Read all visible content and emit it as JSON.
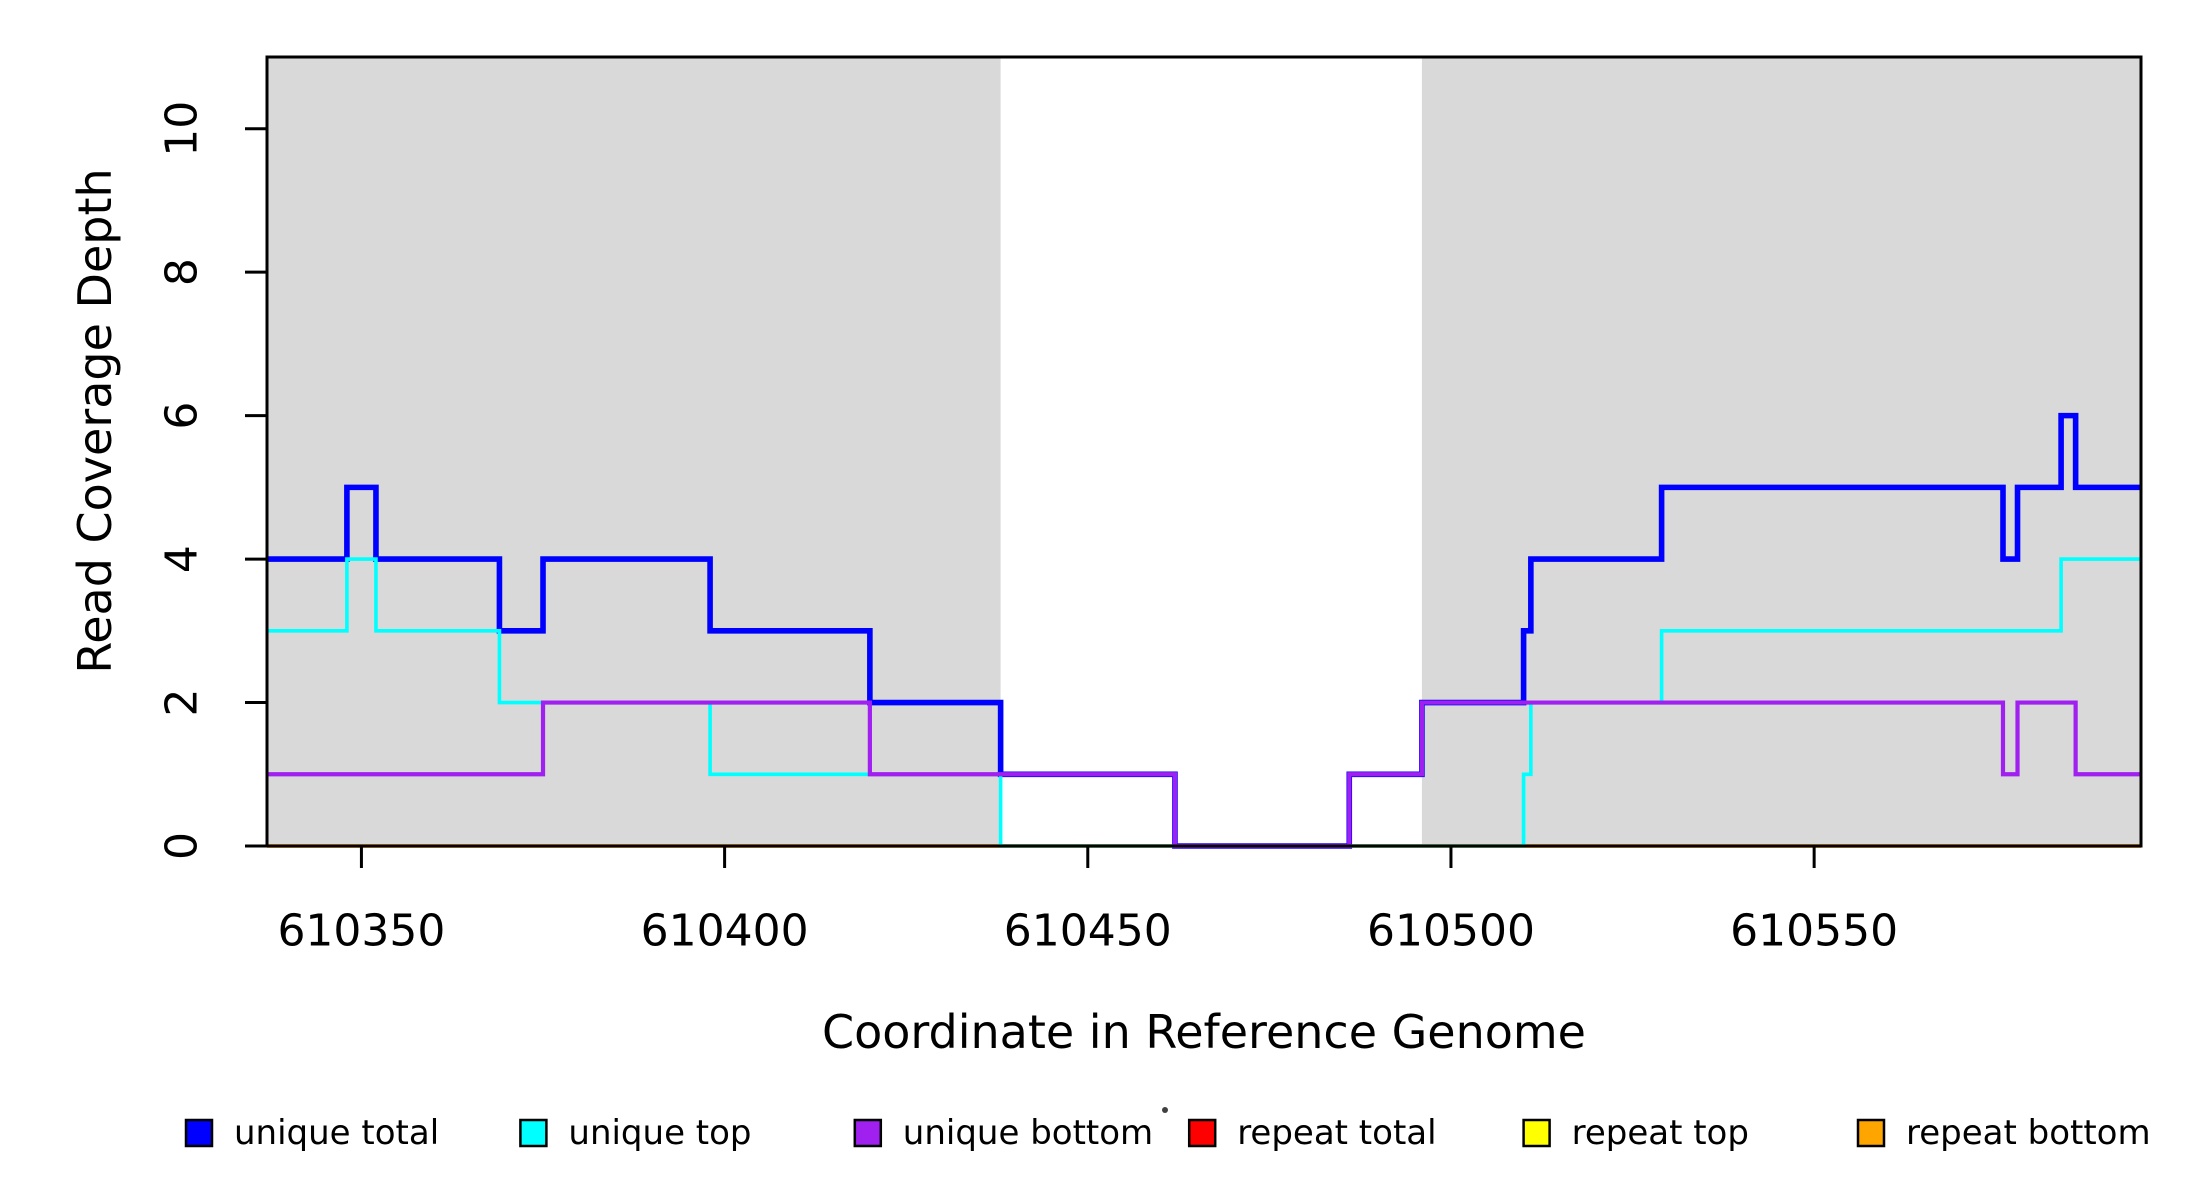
{
  "chart_data": {
    "type": "line",
    "subtype": "step",
    "title": "",
    "xlabel": "Coordinate in Reference Genome",
    "ylabel": "Read Coverage Depth",
    "xlim": [
      610337,
      610595
    ],
    "ylim": [
      0,
      11
    ],
    "x_ticks": [
      610350,
      610400,
      610450,
      610500,
      610550
    ],
    "y_ticks": [
      0,
      2,
      4,
      6,
      8,
      10
    ],
    "grid": false,
    "legend_position": "bottom",
    "shaded_regions": [
      {
        "x0": 610337,
        "x1": 610438,
        "color": "#d9d9d9"
      },
      {
        "x0": 610496,
        "x1": 610595,
        "color": "#d9d9d9"
      }
    ],
    "series": [
      {
        "name": "unique total",
        "color": "#0000ff",
        "steps": [
          [
            610337,
            4
          ],
          [
            610348,
            5
          ],
          [
            610352,
            4
          ],
          [
            610369,
            3
          ],
          [
            610375,
            4
          ],
          [
            610398,
            3
          ],
          [
            610420,
            2
          ],
          [
            610438,
            1
          ],
          [
            610462,
            0
          ],
          [
            610486,
            1
          ],
          [
            610496,
            2
          ],
          [
            610510,
            3
          ],
          [
            610511,
            4
          ],
          [
            610529,
            5
          ],
          [
            610576,
            4
          ],
          [
            610578,
            5
          ],
          [
            610584,
            6
          ],
          [
            610586,
            5
          ]
        ]
      },
      {
        "name": "unique top",
        "color": "#00ffff",
        "steps": [
          [
            610337,
            3
          ],
          [
            610348,
            4
          ],
          [
            610352,
            3
          ],
          [
            610369,
            2
          ],
          [
            610398,
            1
          ],
          [
            610438,
            0
          ],
          [
            610510,
            1
          ],
          [
            610511,
            2
          ],
          [
            610529,
            3
          ],
          [
            610584,
            4
          ]
        ]
      },
      {
        "name": "unique bottom",
        "color": "#a020f0",
        "steps": [
          [
            610337,
            1
          ],
          [
            610375,
            2
          ],
          [
            610420,
            1
          ],
          [
            610462,
            0
          ],
          [
            610486,
            1
          ],
          [
            610496,
            2
          ],
          [
            610576,
            1
          ],
          [
            610578,
            2
          ],
          [
            610586,
            1
          ]
        ]
      },
      {
        "name": "repeat total",
        "color": "#ff0000",
        "steps": [
          [
            610337,
            0
          ]
        ]
      },
      {
        "name": "repeat top",
        "color": "#ffff00",
        "steps": [
          [
            610337,
            0
          ]
        ]
      },
      {
        "name": "repeat bottom",
        "color": "#ffa500",
        "steps": [
          [
            610337,
            0
          ]
        ]
      }
    ],
    "axis_color": "#000000",
    "background_color": "#ffffff"
  }
}
